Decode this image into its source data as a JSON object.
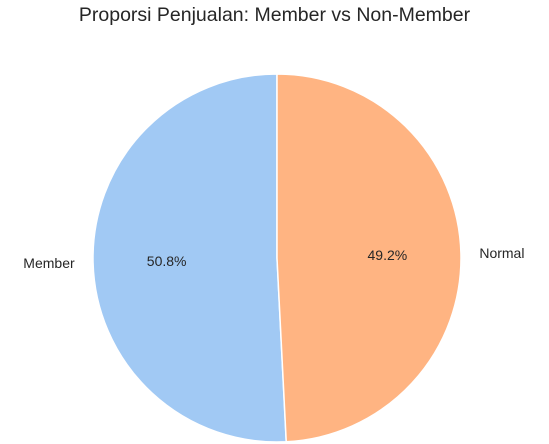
{
  "chart_data": {
    "type": "pie",
    "title": "Proporsi Penjualan: Member vs Non-Member",
    "slices": [
      {
        "label": "Member",
        "value": 50.8,
        "pct_label": "50.8%",
        "color": "#a1c9f4"
      },
      {
        "label": "Normal",
        "value": 49.2,
        "pct_label": "49.2%",
        "color": "#ffb482"
      }
    ],
    "start_angle_deg": 90,
    "direction": "counterclockwise",
    "edge_color": "#ffffff"
  }
}
